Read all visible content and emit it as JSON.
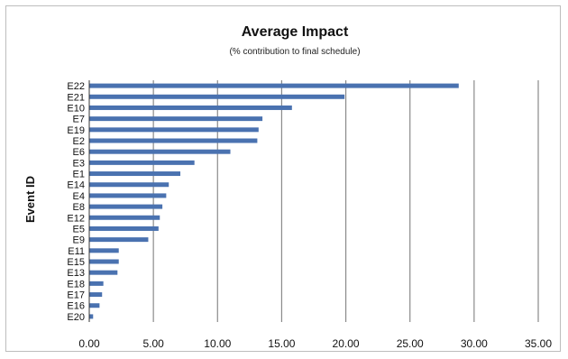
{
  "chart_data": {
    "type": "bar",
    "orientation": "horizontal",
    "title": "Average Impact",
    "subtitle": "(% contribution to final schedule)",
    "xlabel": "",
    "ylabel": "Event ID",
    "categories": [
      "E22",
      "E21",
      "E10",
      "E7",
      "E19",
      "E2",
      "E6",
      "E3",
      "E1",
      "E14",
      "E4",
      "E8",
      "E12",
      "E5",
      "E9",
      "E11",
      "E15",
      "E13",
      "E18",
      "E17",
      "E16",
      "E20"
    ],
    "values": [
      28.8,
      19.9,
      15.8,
      13.5,
      13.2,
      13.1,
      11.0,
      8.2,
      7.1,
      6.2,
      6.0,
      5.7,
      5.5,
      5.4,
      4.6,
      2.3,
      2.3,
      2.2,
      1.1,
      1.0,
      0.8,
      0.3
    ],
    "xlim": [
      0,
      35
    ],
    "xticks": [
      "0.00",
      "5.00",
      "10.00",
      "15.00",
      "20.00",
      "25.00",
      "30.00",
      "35.00"
    ],
    "grid": "vertical",
    "bar_color": "#4a72b0"
  }
}
